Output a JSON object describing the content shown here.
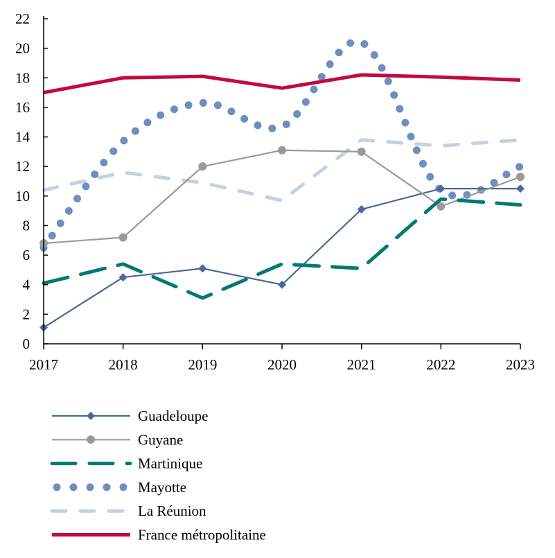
{
  "chart_data": {
    "type": "line",
    "title": "",
    "xlabel": "",
    "ylabel": "",
    "x": [
      2017,
      2018,
      2019,
      2020,
      2021,
      2022,
      2023
    ],
    "xlim": [
      2017,
      2023
    ],
    "ylim": [
      0,
      22
    ],
    "yticks": [
      0,
      2,
      4,
      6,
      8,
      10,
      12,
      14,
      16,
      18,
      20,
      22
    ],
    "grid": false,
    "legend_placement": "bottom",
    "series": [
      {
        "name": "Guadeloupe",
        "values": [
          1.1,
          4.5,
          5.1,
          4.0,
          9.1,
          10.5,
          10.5
        ],
        "color": "#4a6898",
        "style": "solid-diamond"
      },
      {
        "name": "Guyane",
        "values": [
          6.8,
          7.2,
          12.0,
          13.1,
          13.0,
          9.3,
          11.3
        ],
        "color": "#9a9a9a",
        "style": "solid-circle"
      },
      {
        "name": "Martinique",
        "values": [
          4.1,
          5.4,
          3.1,
          5.4,
          5.1,
          9.8,
          9.4
        ],
        "color": "#007a72",
        "style": "long-dash"
      },
      {
        "name": "Mayotte",
        "values": [
          6.5,
          13.7,
          16.3,
          14.7,
          20.4,
          10.4,
          12.0
        ],
        "color": "#6e8fbd",
        "style": "dotted"
      },
      {
        "name": "La Réunion",
        "values": [
          10.4,
          11.6,
          10.9,
          9.7,
          13.8,
          13.4,
          13.8
        ],
        "color": "#c5d0e2",
        "style": "dash"
      },
      {
        "name": "France métropolitaine",
        "values": [
          17.0,
          18.0,
          18.1,
          17.3,
          18.2,
          18.05,
          17.85
        ],
        "color": "#c20a3f",
        "style": "thick-solid"
      }
    ]
  }
}
